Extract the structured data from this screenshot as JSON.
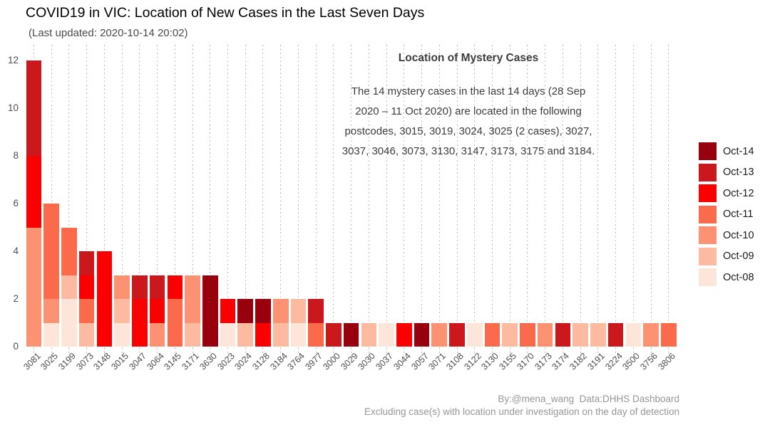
{
  "chart_data": {
    "type": "bar",
    "stacked": true,
    "title": "COVID19 in VIC: Location of New Cases in the Last Seven Days",
    "subtitle": "(Last updated: 2020-10-14 20:02)",
    "xlabel": "",
    "ylabel": "",
    "ylim": [
      0,
      12
    ],
    "yticks": [
      0,
      2,
      4,
      6,
      8,
      10,
      12
    ],
    "grid": "vertical-dotted",
    "legend_position": "right",
    "legend_reversed": true,
    "categories": [
      "3081",
      "3025",
      "3199",
      "3073",
      "3148",
      "3015",
      "3047",
      "3064",
      "3145",
      "3171",
      "3630",
      "3023",
      "3024",
      "3128",
      "3184",
      "3764",
      "3977",
      "3000",
      "3029",
      "3030",
      "3037",
      "3044",
      "3057",
      "3071",
      "3108",
      "3122",
      "3130",
      "3155",
      "3170",
      "3173",
      "3174",
      "3182",
      "3191",
      "3224",
      "3500",
      "3756",
      "3806"
    ],
    "series": [
      {
        "name": "Oct-08",
        "color": "#FEE5D9",
        "values": [
          0,
          1,
          2,
          0,
          0,
          1,
          0,
          0,
          0,
          0,
          0,
          1,
          0,
          0,
          0,
          1,
          0,
          0,
          0,
          0,
          1,
          0,
          0,
          0,
          0,
          1,
          0,
          0,
          0,
          0,
          0,
          0,
          0,
          0,
          1,
          0,
          0
        ]
      },
      {
        "name": "Oct-09",
        "color": "#FCBBA1",
        "values": [
          0,
          0,
          1,
          1,
          0,
          1,
          0,
          0,
          0,
          1,
          0,
          0,
          1,
          0,
          1,
          1,
          0,
          0,
          0,
          1,
          0,
          0,
          0,
          0,
          0,
          0,
          0,
          1,
          0,
          0,
          0,
          1,
          1,
          0,
          0,
          0,
          0
        ]
      },
      {
        "name": "Oct-10",
        "color": "#FC9272",
        "values": [
          5,
          1,
          0,
          0,
          0,
          1,
          0,
          1,
          0,
          2,
          0,
          0,
          0,
          0,
          1,
          0,
          0,
          0,
          0,
          0,
          0,
          0,
          0,
          1,
          0,
          0,
          0,
          0,
          0,
          1,
          0,
          0,
          0,
          0,
          0,
          1,
          0
        ]
      },
      {
        "name": "Oct-11",
        "color": "#FB6A4A",
        "values": [
          0,
          4,
          2,
          1,
          0,
          0,
          0,
          0,
          2,
          0,
          0,
          0,
          0,
          0,
          0,
          0,
          1,
          0,
          0,
          0,
          0,
          0,
          0,
          0,
          0,
          0,
          1,
          0,
          1,
          0,
          0,
          0,
          0,
          0,
          0,
          0,
          1
        ]
      },
      {
        "name": "Oct-12",
        "color": "#FA0000",
        "values": [
          3,
          0,
          0,
          1,
          4,
          0,
          2,
          1,
          1,
          0,
          0,
          1,
          0,
          1,
          0,
          0,
          0,
          0,
          0,
          0,
          0,
          1,
          0,
          0,
          0,
          0,
          0,
          0,
          0,
          0,
          0,
          0,
          0,
          0,
          0,
          0,
          0
        ]
      },
      {
        "name": "Oct-13",
        "color": "#CB181D",
        "values": [
          4,
          0,
          0,
          1,
          0,
          0,
          1,
          1,
          0,
          0,
          0,
          0,
          0,
          0,
          0,
          0,
          1,
          1,
          0,
          0,
          0,
          0,
          0,
          0,
          1,
          0,
          0,
          0,
          0,
          0,
          1,
          0,
          0,
          1,
          0,
          0,
          0
        ]
      },
      {
        "name": "Oct-14",
        "color": "#99000D",
        "values": [
          0,
          0,
          0,
          0,
          0,
          0,
          0,
          0,
          0,
          0,
          3,
          0,
          1,
          1,
          0,
          0,
          0,
          0,
          1,
          0,
          0,
          0,
          1,
          0,
          0,
          0,
          0,
          0,
          0,
          0,
          0,
          0,
          0,
          0,
          0,
          0,
          0
        ]
      }
    ],
    "annotation": {
      "title": "Location of Mystery Cases",
      "lines": [
        "The 14 mystery cases in the last 14 days (28 Sep",
        "2020 – 11 Oct 2020) are located in the following",
        "postcodes, 3015, 3019, 3024, 3025 (2 cases), 3027,",
        "3037, 3046, 3073, 3130, 3147, 3173, 3175 and 3184."
      ]
    },
    "caption_lines": [
      "By:@mena_wang  Data:DHHS Dashboard",
      "Excluding case(s) with location under investigation on the day of detection"
    ]
  }
}
